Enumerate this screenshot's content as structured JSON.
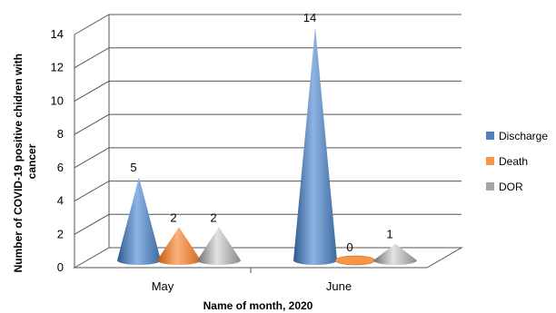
{
  "chart_data": {
    "type": "bar",
    "style": "3d-cone",
    "categories": [
      "May",
      "June"
    ],
    "series": [
      {
        "name": "Discharge",
        "values": [
          5,
          14
        ],
        "color": "#4f81bd"
      },
      {
        "name": "Death",
        "values": [
          2,
          0
        ],
        "color": "#f79646"
      },
      {
        "name": "DOR",
        "values": [
          2,
          1
        ],
        "color": "#a5a5a5"
      }
    ],
    "xlabel": "Name of month, 2020",
    "ylabel": "Number of COVID-19 positive chidren with cancer",
    "ylabel_lines": [
      "Number of COVID-19 positive chidren with",
      "cancer"
    ],
    "ylim": [
      0,
      14
    ],
    "yticks": [
      "0",
      "2",
      "4",
      "6",
      "8",
      "10",
      "12",
      "14"
    ],
    "grid": true,
    "legend": "right"
  }
}
